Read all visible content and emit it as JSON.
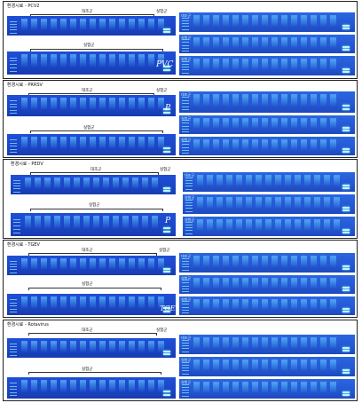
{
  "panels": [
    {
      "title": "환경시료 - PCV2",
      "group_control": "대조군",
      "group_experimental": "실험군",
      "mark": "PVC"
    },
    {
      "title": "환경시료 - PRRSV",
      "group_control": "대조군",
      "group_experimental": "실험군",
      "mark": "P"
    },
    {
      "title": "환경시료 - PEDV",
      "group_control": "대조군",
      "group_experimental": "실험군",
      "mark": "P"
    },
    {
      "title": "환경시료 - TGEV",
      "group_control": "대조군",
      "group_experimental": "실험군",
      "mark": "TGEV"
    },
    {
      "title": "환경시료 - Rotavirus",
      "group_control": "대조군",
      "group_experimental": "실험군",
      "mark": ""
    }
  ],
  "right_gel_label": "대조군",
  "right_gel_label_exp": "실험군",
  "colors": {
    "gel": "#1f4fd6",
    "band": "#b6f7ff",
    "border": "#222222"
  }
}
